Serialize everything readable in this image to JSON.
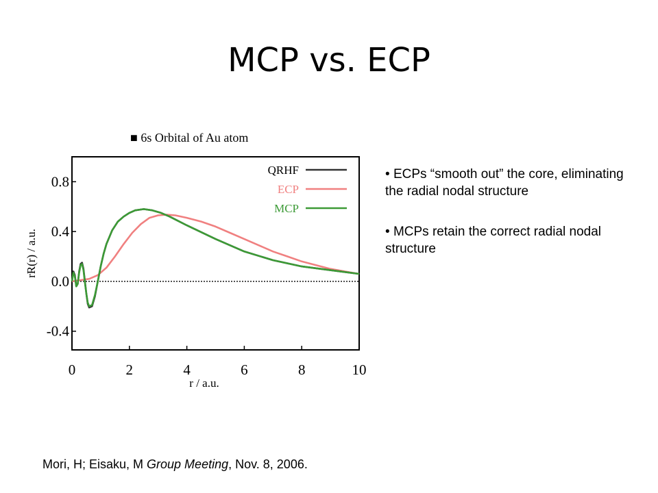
{
  "slide": {
    "title": "MCP vs. ECP"
  },
  "bullets": [
    "ECPs “smooth out” the core, eliminating the radial nodal structure",
    "MCPs retain the correct radial nodal structure"
  ],
  "citation": {
    "authors": "Mori, H; Eisaku, M ",
    "venue": "Group Meeting",
    "date": ", Nov. 8, 2006."
  },
  "chart_data": {
    "type": "line",
    "title": "■ 6s Orbital of Au atom",
    "xlabel": "r / a.u.",
    "ylabel": "rR(r) / a.u.",
    "xlim": [
      0,
      10
    ],
    "ylim": [
      -0.55,
      1.0
    ],
    "xticks": [
      0,
      2,
      4,
      6,
      8,
      10
    ],
    "xtick_labels": [
      "0",
      "2",
      "4",
      "6",
      "8",
      "10"
    ],
    "yticks": [
      -0.4,
      0.0,
      0.4,
      0.8
    ],
    "ytick_labels": [
      "-0.4",
      "0.0",
      "0.4",
      "0.8"
    ],
    "grid": false,
    "legend": "top-right",
    "zero_line": "dotted",
    "series": [
      {
        "name": "QRHF",
        "color": "#333333",
        "x": [
          0,
          0.05,
          0.1,
          0.15,
          0.2,
          0.25,
          0.3,
          0.35,
          0.4,
          0.45,
          0.5,
          0.55,
          0.6,
          0.7,
          0.8,
          0.9,
          1.0,
          1.1,
          1.2,
          1.4,
          1.6,
          1.8,
          2.0,
          2.2,
          2.5,
          2.8,
          3.1,
          3.4,
          4.0,
          5.0,
          6.0,
          7.0,
          8.0,
          9.0,
          10.0
        ],
        "y": [
          0.0,
          0.08,
          0.05,
          -0.04,
          -0.02,
          0.08,
          0.14,
          0.15,
          0.1,
          0.0,
          -0.1,
          -0.18,
          -0.21,
          -0.2,
          -0.12,
          0.0,
          0.12,
          0.22,
          0.3,
          0.41,
          0.48,
          0.52,
          0.55,
          0.57,
          0.58,
          0.57,
          0.55,
          0.52,
          0.45,
          0.34,
          0.24,
          0.17,
          0.12,
          0.09,
          0.06
        ]
      },
      {
        "name": "ECP",
        "color": "#f08080",
        "x": [
          0,
          0.3,
          0.6,
          0.9,
          1.2,
          1.5,
          1.8,
          2.1,
          2.4,
          2.7,
          3.0,
          3.3,
          3.6,
          4.0,
          4.5,
          5.0,
          5.5,
          6.0,
          6.5,
          7.0,
          7.5,
          8.0,
          8.5,
          9.0,
          9.5,
          10.0
        ],
        "y": [
          0.0,
          0.01,
          0.02,
          0.05,
          0.11,
          0.2,
          0.3,
          0.39,
          0.46,
          0.51,
          0.53,
          0.535,
          0.53,
          0.51,
          0.48,
          0.44,
          0.39,
          0.34,
          0.29,
          0.24,
          0.2,
          0.16,
          0.13,
          0.1,
          0.08,
          0.06
        ]
      },
      {
        "name": "MCP",
        "color": "#3c9a36",
        "x": [
          0,
          0.05,
          0.1,
          0.15,
          0.2,
          0.25,
          0.3,
          0.35,
          0.4,
          0.45,
          0.5,
          0.55,
          0.6,
          0.7,
          0.8,
          0.9,
          1.0,
          1.1,
          1.2,
          1.4,
          1.6,
          1.8,
          2.0,
          2.2,
          2.5,
          2.8,
          3.1,
          3.4,
          4.0,
          5.0,
          6.0,
          7.0,
          8.0,
          9.0,
          10.0
        ],
        "y": [
          0.0,
          0.07,
          0.04,
          -0.04,
          -0.02,
          0.07,
          0.13,
          0.14,
          0.09,
          -0.01,
          -0.1,
          -0.17,
          -0.2,
          -0.19,
          -0.11,
          0.0,
          0.12,
          0.22,
          0.3,
          0.41,
          0.48,
          0.52,
          0.55,
          0.57,
          0.58,
          0.57,
          0.55,
          0.52,
          0.45,
          0.34,
          0.24,
          0.17,
          0.12,
          0.09,
          0.06
        ]
      }
    ]
  }
}
